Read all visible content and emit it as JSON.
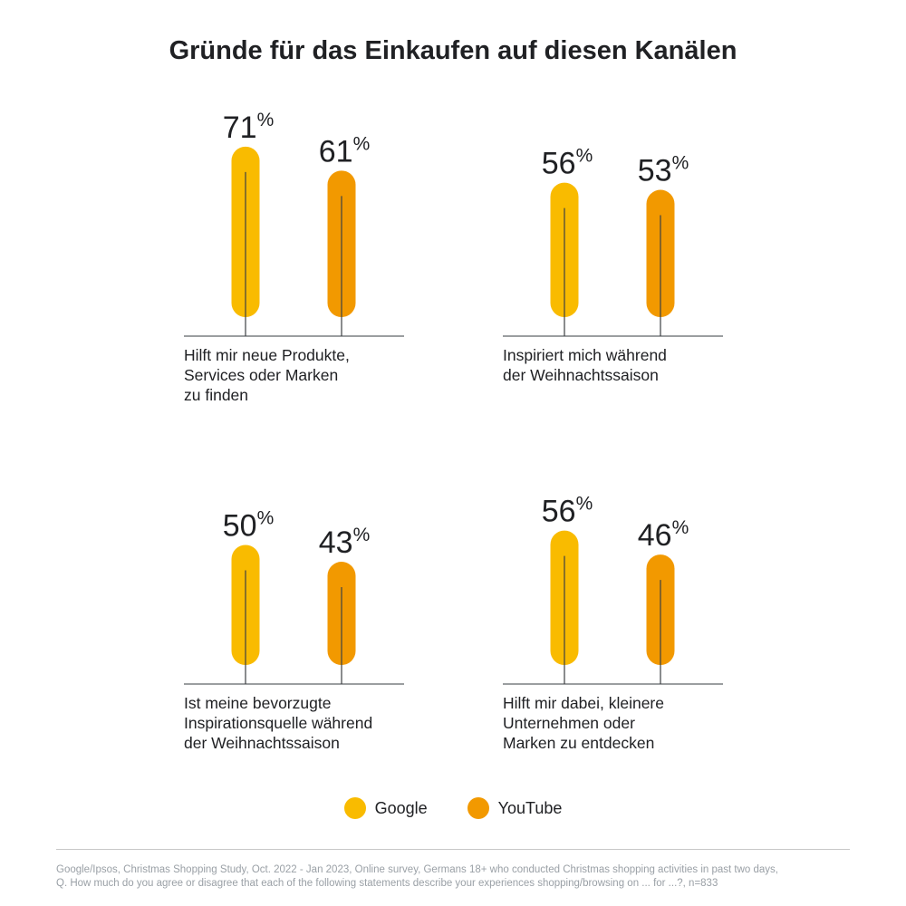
{
  "title": "Gründe für das Einkaufen auf diesen Kanälen",
  "colors": {
    "google": "#F9BB00",
    "youtube": "#F29900"
  },
  "chart_data": {
    "type": "bar",
    "unit": "%",
    "ylim": [
      0,
      100
    ],
    "grid": false,
    "legend_position": "bottom-center",
    "series_names": [
      "Google",
      "YouTube"
    ],
    "panels": [
      {
        "category": "Hilft mir neue Produkte, Services oder Marken zu finden",
        "label_lines": "Hilft mir neue Produkte,\nServices oder Marken\nzu finden",
        "values": [
          71,
          61
        ]
      },
      {
        "category": "Inspiriert mich während der Weihnachtssaison",
        "label_lines": "Inspiriert mich während\nder Weihnachtssaison",
        "values": [
          56,
          53
        ]
      },
      {
        "category": "Ist meine bevorzugte Inspirationsquelle während der Weihnachtssaison",
        "label_lines": "Ist meine bevorzugte\nInspirationsquelle während\nder Weihnachtssaison",
        "values": [
          50,
          43
        ]
      },
      {
        "category": "Hilft mir dabei, kleinere Unternehmen oder Marken zu entdecken",
        "label_lines": "Hilft mir dabei, kleinere\nUnternehmen oder\nMarken zu entdecken",
        "values": [
          56,
          46
        ]
      }
    ]
  },
  "legend": {
    "google_label": "Google",
    "youtube_label": "YouTube"
  },
  "source": {
    "line1": "Google/Ipsos, Christmas Shopping Study, Oct. 2022 - Jan 2023, Online survey, Germans 18+ who conducted Christmas shopping activities in past two days,",
    "line2": "Q. How much do you agree or disagree that each of the following statements describe your experiences shopping/browsing on ... for ...?, n=833"
  }
}
